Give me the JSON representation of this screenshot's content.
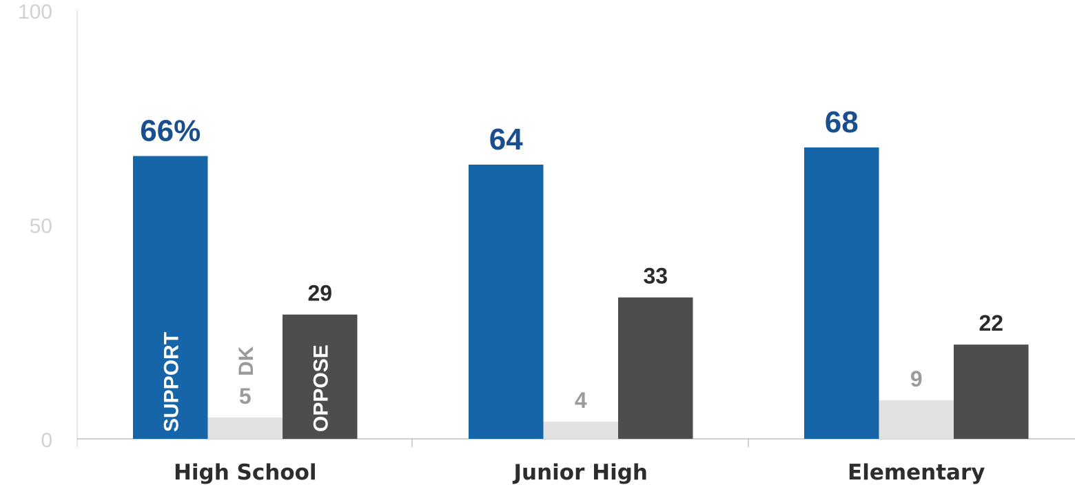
{
  "chart_data": {
    "type": "bar",
    "categories": [
      "High School",
      "Junior High",
      "Elementary"
    ],
    "series": [
      {
        "name": "SUPPORT",
        "values": [
          66,
          64,
          68
        ],
        "color": "#1565a8"
      },
      {
        "name": "DK",
        "values": [
          5,
          4,
          9
        ],
        "color": "#e1e3e2"
      },
      {
        "name": "OPPOSE",
        "values": [
          29,
          33,
          22
        ],
        "color": "#4b4d4e"
      }
    ],
    "value_labels": [
      [
        "66%",
        "64",
        "68"
      ],
      [
        "5",
        "4",
        "9"
      ],
      [
        "29",
        "33",
        "22"
      ]
    ],
    "value_label_colors": [
      "#1a4f8f",
      "#9a9c9b",
      "#2b2b2b"
    ],
    "yticks": [
      "0",
      "50",
      "100"
    ],
    "ylim": [
      0,
      100
    ],
    "grid": false,
    "title": "",
    "xlabel": "",
    "ylabel": ""
  }
}
